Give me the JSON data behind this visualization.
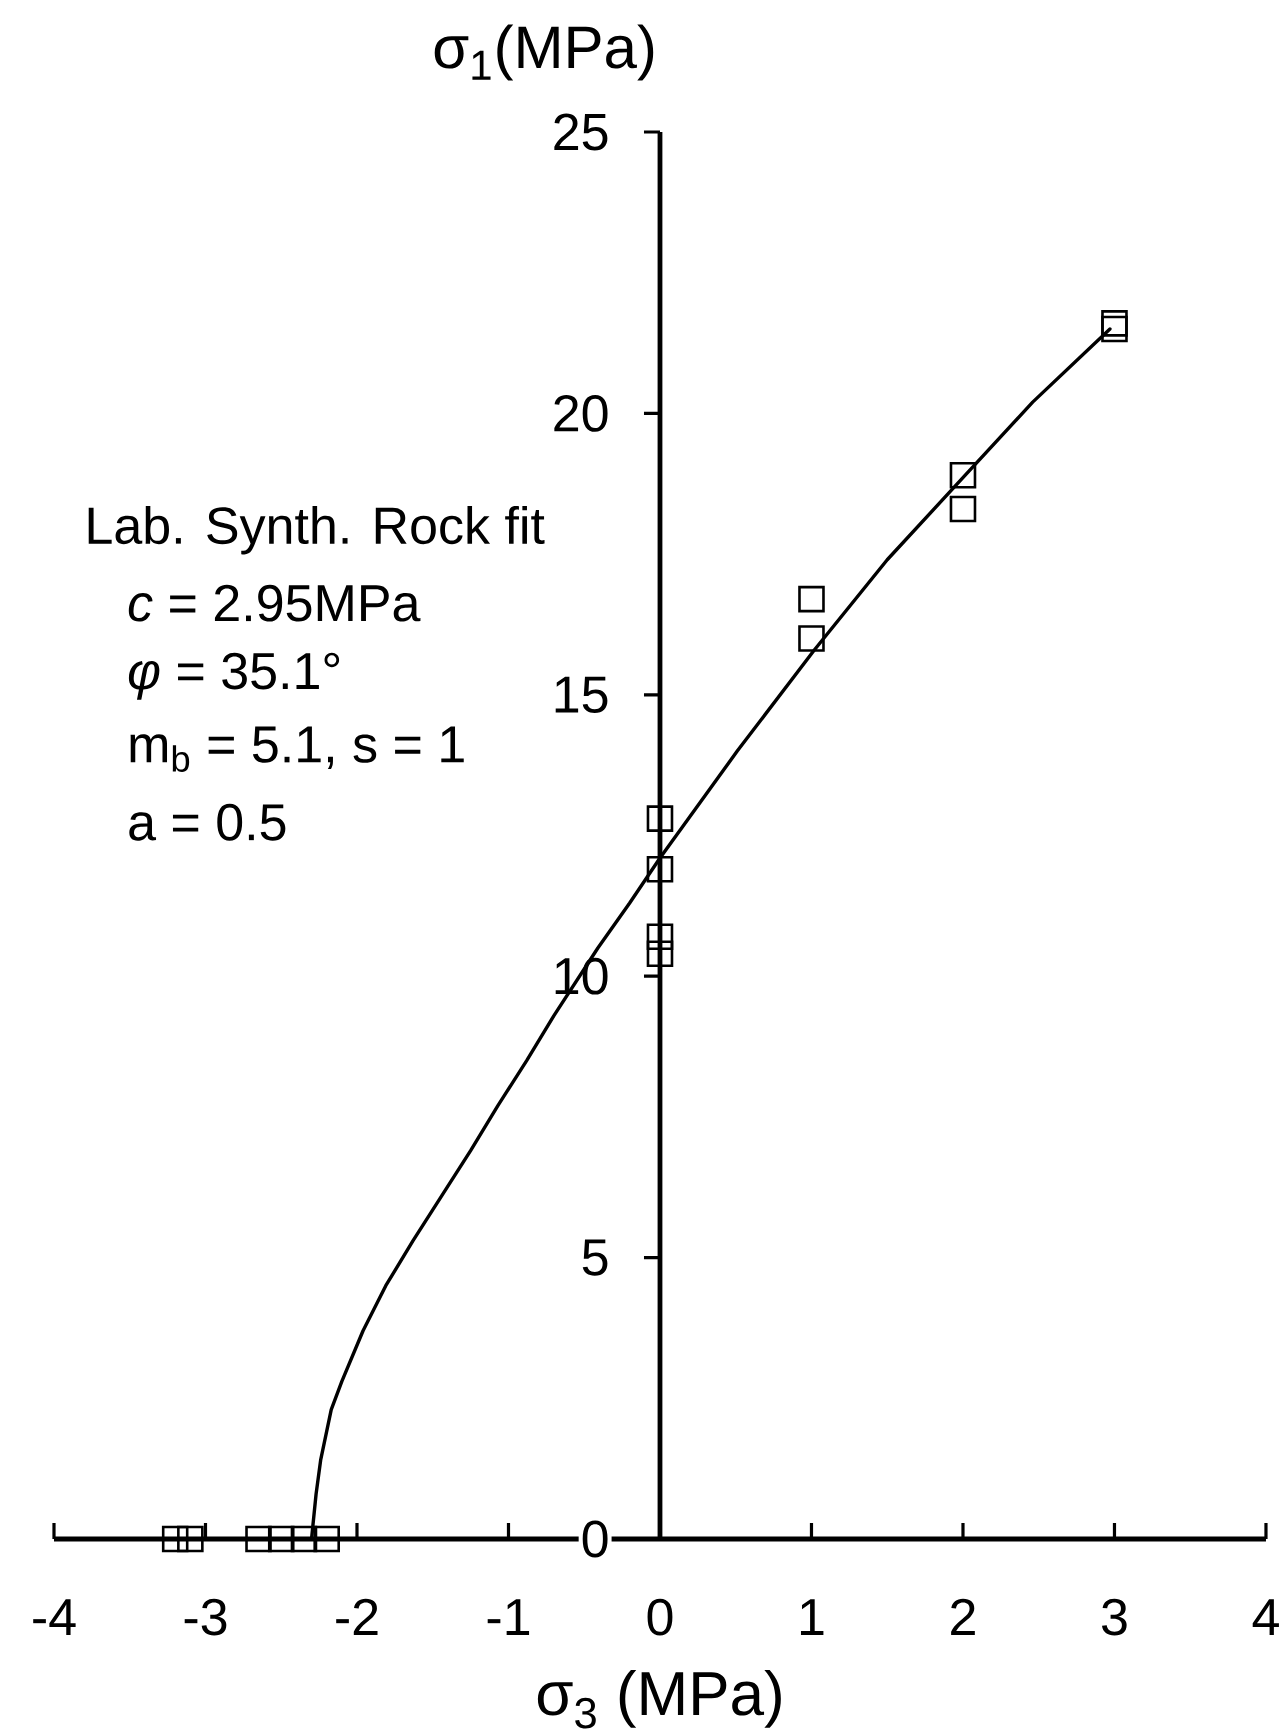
{
  "chart_data": {
    "type": "scatter",
    "xlabel": "σ$_{3}$ (MPa)",
    "ylabel": "σ$_{1}$(MPa)",
    "annotations": [
      "Lab. Synth. Rock fit",
      "*c* = 2.95MPa",
      "*φ* = 35.1°",
      "m$_{b}$ = 5.1, s = 1",
      "a = 0.5"
    ],
    "xlim": [
      -4,
      4
    ],
    "ylim": [
      0,
      25
    ],
    "xticks": [
      -4,
      -3,
      -2,
      -1,
      0,
      1,
      2,
      3,
      4
    ],
    "yticks": [
      0,
      5,
      10,
      15,
      20,
      25
    ],
    "series": [
      {
        "type": "scatter",
        "color": "#000000",
        "marker": "square",
        "x": [
          3,
          3,
          2,
          2,
          1,
          1,
          0,
          0,
          0,
          0,
          -3.2,
          -3.1,
          -2.65,
          -2.5,
          -2.35,
          -2.2
        ],
        "values": [
          21.6,
          21.5,
          18.9,
          18.3,
          16.7,
          16.0,
          12.8,
          11.9,
          10.7,
          10.4,
          0,
          0,
          0,
          0,
          0,
          0
        ]
      },
      {
        "type": "line",
        "color": "#000000",
        "marker": "none",
        "line_style": "solid",
        "x": [
          -2.3,
          -2.27,
          -2.24,
          -2.17,
          -2.1,
          -1.96,
          -1.81,
          -1.63,
          -1.44,
          -1.25,
          -1.07,
          -0.88,
          -0.7,
          -0.41,
          -0.2,
          0,
          0.51,
          1.02,
          1.5,
          1.98,
          2.46,
          2.97
        ],
        "values": [
          0,
          0.8,
          1.4,
          2.3,
          2.8,
          3.7,
          4.5,
          5.3,
          6.1,
          6.9,
          7.7,
          8.5,
          9.3,
          10.5,
          11.3,
          12.1,
          14.0,
          15.8,
          17.4,
          18.8,
          20.2,
          21.5
        ]
      }
    ]
  }
}
